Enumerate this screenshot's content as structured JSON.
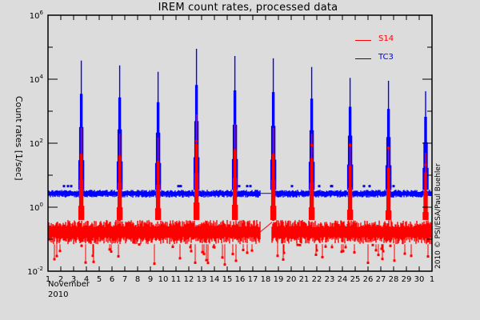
{
  "chart_data": {
    "type": "line",
    "title": "IREM count rates, processed data",
    "xlabel": "November 2010",
    "xlabel_month": "November",
    "xlabel_year": "2010",
    "ylabel": "Count rates [1/sec]",
    "yscale": "log",
    "ylim": [
      0.01,
      1000000
    ],
    "xlim": [
      1,
      31
    ],
    "y_tick_labels": [
      "10^6",
      "10^4",
      "10^2",
      "10^0",
      "10^-2"
    ],
    "x_tick_labels": [
      "1",
      "2",
      "3",
      "4",
      "5",
      "6",
      "7",
      "8",
      "9",
      "10",
      "11",
      "12",
      "13",
      "14",
      "15",
      "16",
      "17",
      "18",
      "19",
      "20",
      "21",
      "22",
      "23",
      "24",
      "25",
      "26",
      "27",
      "28",
      "29",
      "30",
      "1"
    ],
    "legend": {
      "position": "upper right",
      "entries": [
        {
          "name": "S14",
          "color": "#ff0000"
        },
        {
          "name": "TC3",
          "color": "#0000ff"
        }
      ]
    },
    "credit": "2010 © PSI/ESA/Paul Buehler",
    "grid": false,
    "data_gap": {
      "start_day": 17.6,
      "end_day": 18.5
    },
    "series": [
      {
        "name": "TC3",
        "color": "#0000ff",
        "baseline": 2.7,
        "baseline_spread": [
          2.0,
          3.5
        ],
        "peaks": [
          {
            "day": 3.6,
            "value": 38000
          },
          {
            "day": 6.6,
            "value": 27000
          },
          {
            "day": 9.6,
            "value": 17000
          },
          {
            "day": 12.6,
            "value": 89000
          },
          {
            "day": 15.6,
            "value": 53000
          },
          {
            "day": 18.6,
            "value": 45000
          },
          {
            "day": 21.6,
            "value": 24000
          },
          {
            "day": 24.6,
            "value": 11000
          },
          {
            "day": 27.6,
            "value": 8900
          },
          {
            "day": 30.5,
            "value": 4200
          }
        ]
      },
      {
        "name": "S14",
        "color": "#ff0000",
        "baseline": 0.17,
        "baseline_spread": [
          0.07,
          0.4
        ],
        "min_dips": 0.015,
        "peaks": [
          {
            "day": 3.6,
            "value": 300
          },
          {
            "day": 6.6,
            "value": 200
          },
          {
            "day": 9.6,
            "value": 150
          },
          {
            "day": 12.6,
            "value": 800
          },
          {
            "day": 15.6,
            "value": 400
          },
          {
            "day": 18.6,
            "value": 300
          },
          {
            "day": 21.6,
            "value": 200
          },
          {
            "day": 24.6,
            "value": 100
          },
          {
            "day": 27.6,
            "value": 80
          },
          {
            "day": 30.5,
            "value": 50
          }
        ]
      }
    ]
  }
}
